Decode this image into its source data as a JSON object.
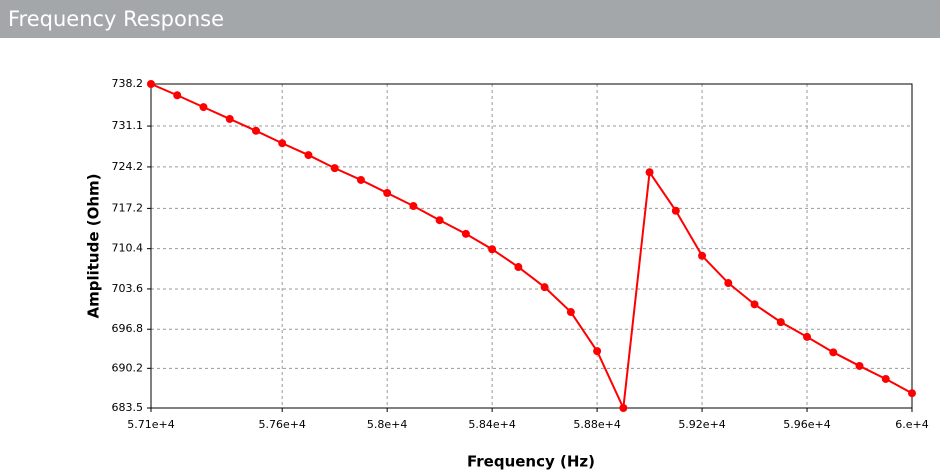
{
  "header": {
    "title": "Frequency Response"
  },
  "chart_data": {
    "type": "line",
    "xlabel": "Frequency (Hz)",
    "ylabel": "Amplitude (Ohm)",
    "x": [
      57100,
      57200,
      57300,
      57400,
      57500,
      57600,
      57700,
      57800,
      57900,
      58000,
      58100,
      58200,
      58300,
      58400,
      58500,
      58600,
      58700,
      58800,
      58900,
      59000,
      59100,
      59200,
      59300,
      59400,
      59500,
      59600,
      59700,
      59800,
      59900,
      60000
    ],
    "series": [
      {
        "name": "Amplitude",
        "color": "#ff0000",
        "values": [
          738.2,
          736.3,
          734.3,
          732.3,
          730.3,
          728.2,
          726.2,
          724.0,
          722.0,
          719.8,
          717.6,
          715.2,
          712.9,
          710.3,
          707.3,
          703.9,
          699.7,
          693.1,
          683.5,
          723.3,
          716.8,
          709.2,
          704.6,
          701.0,
          698.0,
          695.5,
          692.9,
          690.6,
          688.4,
          686.0
        ]
      }
    ],
    "xlim": [
      57100,
      60000
    ],
    "xticks": [
      {
        "value": 57100,
        "label": "5.71e+4"
      },
      {
        "value": 57600,
        "label": "5.76e+4"
      },
      {
        "value": 58000,
        "label": "5.8e+4"
      },
      {
        "value": 58400,
        "label": "5.84e+4"
      },
      {
        "value": 58800,
        "label": "5.88e+4"
      },
      {
        "value": 59200,
        "label": "5.92e+4"
      },
      {
        "value": 59600,
        "label": "5.96e+4"
      },
      {
        "value": 60000,
        "label": "6.e+4"
      }
    ],
    "ylim": [
      683.5,
      738.2
    ],
    "yticks": [
      683.5,
      690.2,
      696.8,
      703.6,
      710.4,
      717.2,
      724.2,
      731.1,
      738.2
    ],
    "grid": true
  }
}
